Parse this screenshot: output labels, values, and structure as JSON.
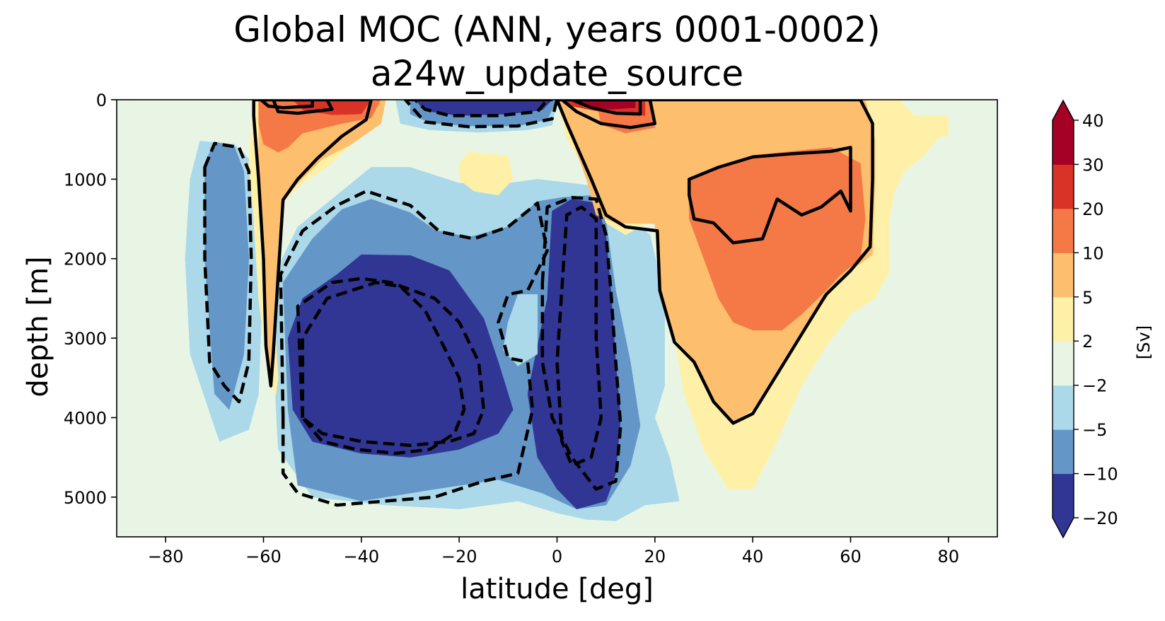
{
  "chart_data": {
    "type": "contour",
    "title": "Global MOC (ANN, years 0001-0002)",
    "subtitle": "a24w_update_source",
    "xlabel": "latitude [deg]",
    "ylabel": "depth [m]",
    "xlim": [
      -90,
      90
    ],
    "ylim": [
      5500,
      0
    ],
    "x_ticks": [
      -80,
      -60,
      -40,
      -20,
      0,
      20,
      40,
      60,
      80
    ],
    "x_tick_labels": [
      "−80",
      "−60",
      "−40",
      "−20",
      "0",
      "20",
      "40",
      "60",
      "80"
    ],
    "y_ticks": [
      0,
      1000,
      2000,
      3000,
      4000,
      5000
    ],
    "y_tick_labels": [
      "0",
      "1000",
      "2000",
      "3000",
      "4000",
      "5000"
    ],
    "colorbar": {
      "label": "[Sv]",
      "levels": [
        -20,
        -10,
        -5,
        -2,
        2,
        5,
        10,
        20,
        30,
        40
      ],
      "tick_labels": [
        "−20",
        "−10",
        "−5",
        "−2",
        "2",
        "5",
        "10",
        "20",
        "30",
        "40"
      ],
      "colors": [
        "#313695",
        "#6497c7",
        "#abd9e9",
        "#e9f5e4",
        "#fff0a8",
        "#fdbe6e",
        "#f57946",
        "#d93327",
        "#a50026"
      ],
      "extend": "both",
      "under_color": "#313695",
      "over_color": "#a50026"
    },
    "contour_lines": {
      "solid": "positive",
      "dashed": "negative",
      "color": "#000000"
    },
    "regions": [
      {
        "name": "southern-ocean-positive-cell",
        "value_range": [
          5,
          30
        ],
        "lat_range": [
          -62,
          -35
        ],
        "depth_range": [
          0,
          3700
        ]
      },
      {
        "name": "southern-flank-negative-cell",
        "value_range": [
          -10,
          -2
        ],
        "lat_range": [
          -73,
          -60
        ],
        "depth_range": [
          500,
          4300
        ]
      },
      {
        "name": "antarctic-bottom-water-cell",
        "value_range": [
          -20,
          -5
        ],
        "lat_range": [
          -57,
          -3
        ],
        "depth_range": [
          1000,
          5100
        ]
      },
      {
        "name": "tropical-surface-negative-cell",
        "value_range": [
          -20,
          -5
        ],
        "lat_range": [
          -30,
          -1
        ],
        "depth_range": [
          0,
          350
        ]
      },
      {
        "name": "deep-tropical-negative-cell",
        "value_range": [
          -20,
          -10
        ],
        "lat_range": [
          -3,
          20
        ],
        "depth_range": [
          1100,
          5200
        ]
      },
      {
        "name": "equatorial-surface-positive-cell",
        "value_range": [
          10,
          40
        ],
        "lat_range": [
          0,
          20
        ],
        "depth_range": [
          0,
          400
        ]
      },
      {
        "name": "amoc-positive-cell",
        "value_range": [
          2,
          20
        ],
        "lat_range": [
          8,
          65
        ],
        "depth_range": [
          0,
          4100
        ]
      }
    ]
  }
}
